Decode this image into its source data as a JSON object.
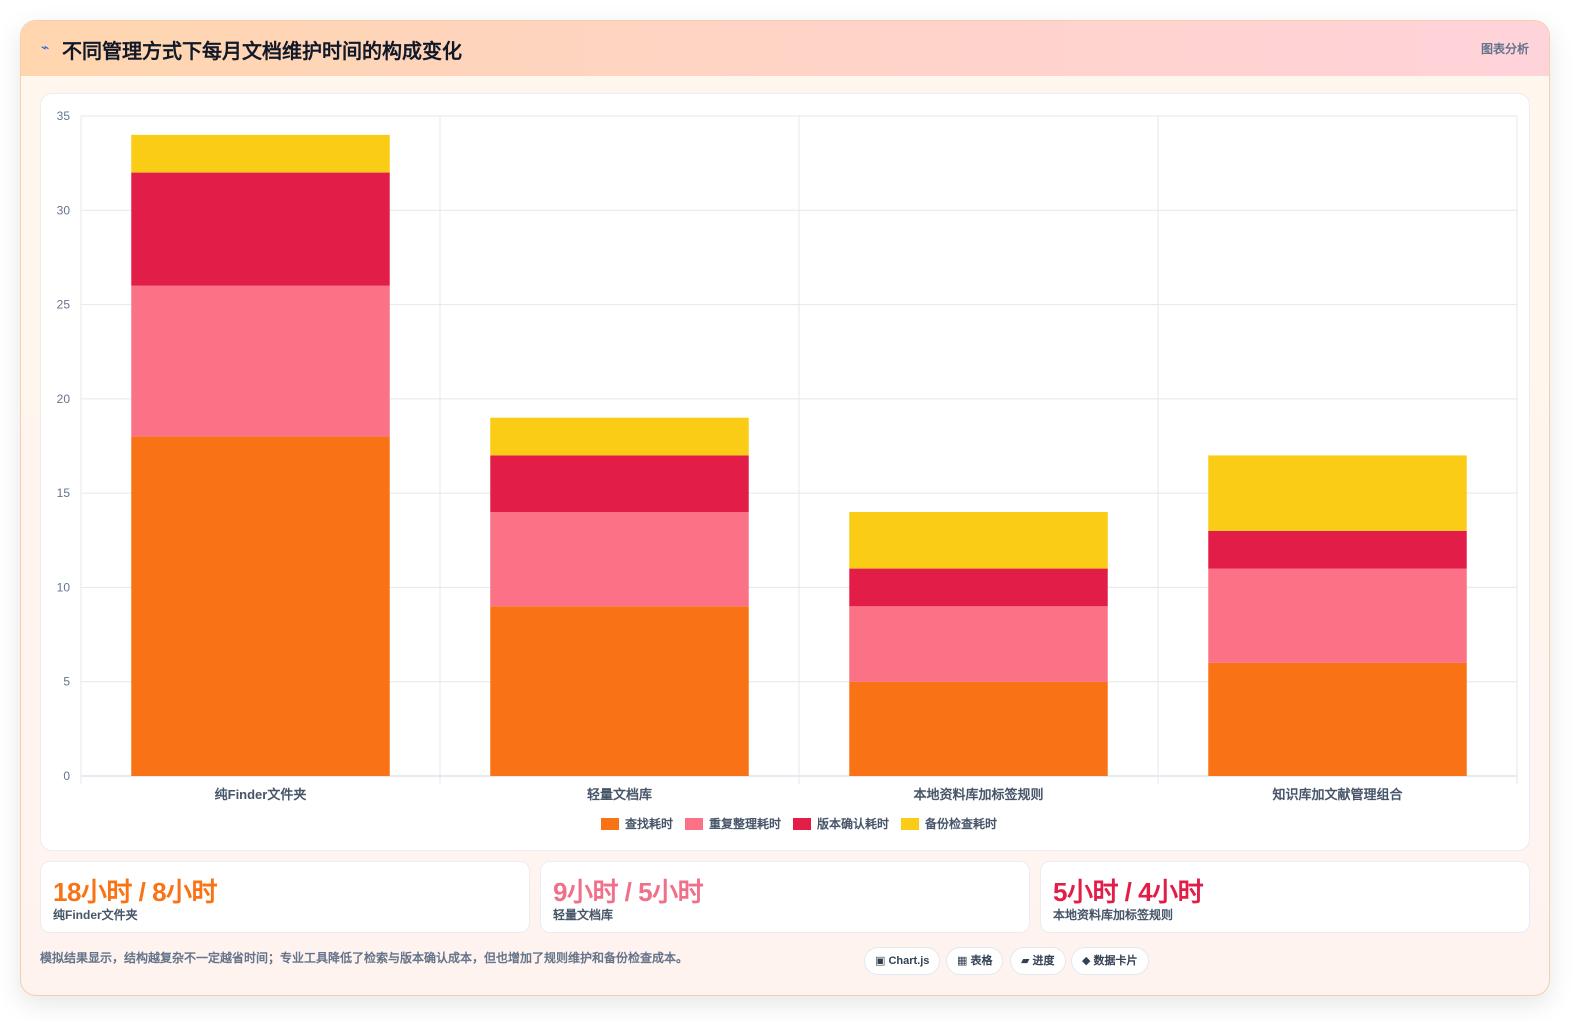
{
  "header": {
    "icon": "chart-icon",
    "title": "不同管理方式下每月文档维护时间的构成变化",
    "tag": "图表分析"
  },
  "chart_data": {
    "type": "bar",
    "stacked": true,
    "categories": [
      "纯Finder文件夹",
      "轻量文档库",
      "本地资料库加标签规则",
      "知识库加文献管理组合"
    ],
    "series": [
      {
        "name": "查找耗时",
        "values": [
          18,
          9,
          5,
          6
        ],
        "color": "#f97316"
      },
      {
        "name": "重复整理耗时",
        "values": [
          8,
          5,
          4,
          5
        ],
        "color": "#fb7185"
      },
      {
        "name": "版本确认耗时",
        "values": [
          6,
          3,
          2,
          2
        ],
        "color": "#e11d48"
      },
      {
        "name": "备份检查耗时",
        "values": [
          2,
          2,
          3,
          4
        ],
        "color": "#facc15"
      }
    ],
    "ylim": [
      0,
      35
    ],
    "yticks": [
      0,
      5,
      10,
      15,
      20,
      25,
      30,
      35
    ],
    "grid": true,
    "legend": "bottom",
    "title": "",
    "xlabel": "",
    "ylabel": ""
  },
  "stats": [
    {
      "value": "18小时 / 8小时",
      "label": "纯Finder文件夹",
      "color": "#f97316"
    },
    {
      "value": "9小时 / 5小时",
      "label": "轻量文档库",
      "color": "#f0708a"
    },
    {
      "value": "5小时 / 4小时",
      "label": "本地资料库加标签规则",
      "color": "#e11d48"
    }
  ],
  "footer": {
    "note": "模拟结果显示，结构越复杂不一定越省时间；专业工具降低了检索与版本确认成本，但也增加了规则维护和备份检查成本。",
    "tags": [
      {
        "label": "▣ Chart.js"
      },
      {
        "label": "▦ 表格"
      },
      {
        "label": "▰ 进度"
      },
      {
        "label": "◆ 数据卡片"
      }
    ]
  }
}
